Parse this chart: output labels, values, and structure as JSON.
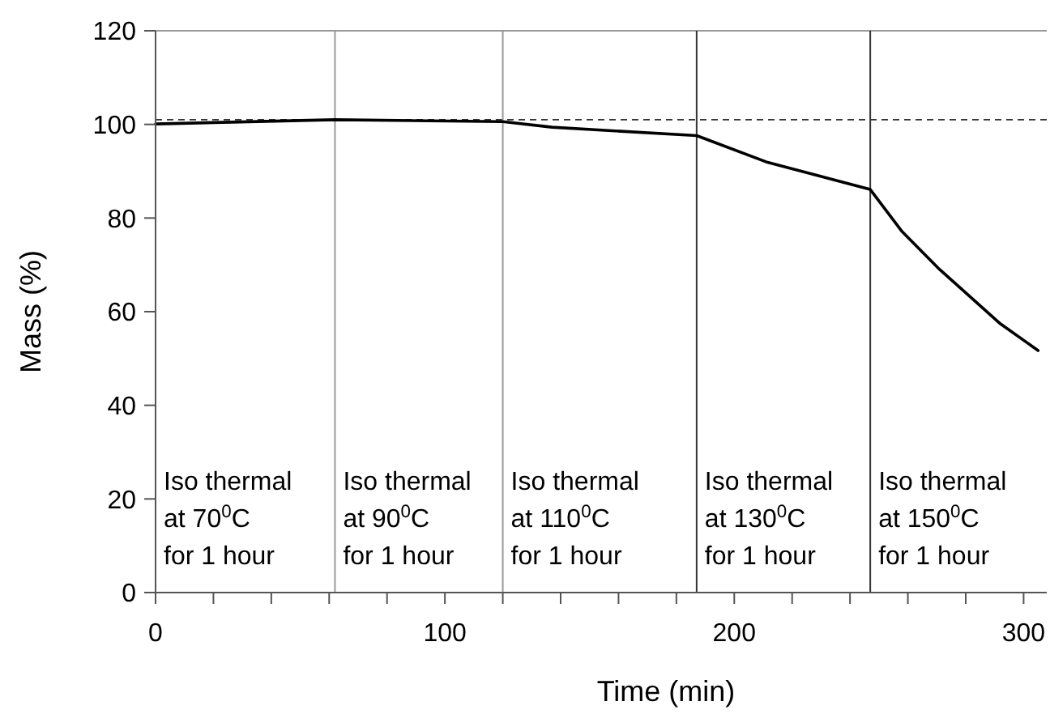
{
  "chart_data": {
    "type": "line",
    "xlabel": "Time (min)",
    "ylabel": "Mass (%)",
    "x": [
      0,
      62,
      120,
      137,
      187,
      211,
      247,
      258,
      271,
      292,
      305
    ],
    "series": [
      {
        "color": "#000000",
        "values": [
          100.1,
          101,
          100.6,
          99.4,
          97.6,
          92,
          86.1,
          77.1,
          69,
          57.4,
          51.7
        ]
      }
    ],
    "xlim": [
      0,
      308
    ],
    "ylim": [
      0,
      120
    ],
    "xticks": [
      0,
      {
        "value": 20,
        "label": null
      },
      {
        "value": 40,
        "label": null
      },
      {
        "value": 60,
        "label": null
      },
      {
        "value": 80,
        "label": null
      },
      100,
      {
        "value": 120,
        "label": null
      },
      {
        "value": 140,
        "label": null
      },
      {
        "value": 160,
        "label": null
      },
      {
        "value": 180,
        "label": null
      },
      200,
      {
        "value": 220,
        "label": null
      },
      {
        "value": 240,
        "label": null
      },
      {
        "value": 260,
        "label": null
      },
      {
        "value": 280,
        "label": null
      },
      300
    ],
    "yticks": [
      0,
      20,
      40,
      60,
      80,
      100,
      120
    ],
    "grid": false,
    "marker": "none",
    "line_style": "solid",
    "ref_lines": [
      {
        "axis": "y",
        "value": 101,
        "color": "#333333",
        "line_style": "dashed"
      },
      {
        "axis": "x",
        "value": 62,
        "color": "#999999"
      },
      {
        "axis": "x",
        "value": 120,
        "color": "#999999"
      },
      {
        "axis": "x",
        "value": 187,
        "color": "#333333"
      },
      {
        "axis": "x",
        "value": 247,
        "color": "#333333"
      }
    ],
    "annotations": [
      "Iso thermal\nat 70$^{0}$C\nfor 1 hour",
      "Iso thermal\nat 90$^{0}$C\nfor 1 hour",
      "Iso thermal\nat 110$^{0}$C\nfor 1 hour",
      "Iso thermal\nat 130$^{0}$C\nfor 1 hour",
      "Iso thermal\nat 150$^{0}$C\nfor 1 hour"
    ]
  }
}
